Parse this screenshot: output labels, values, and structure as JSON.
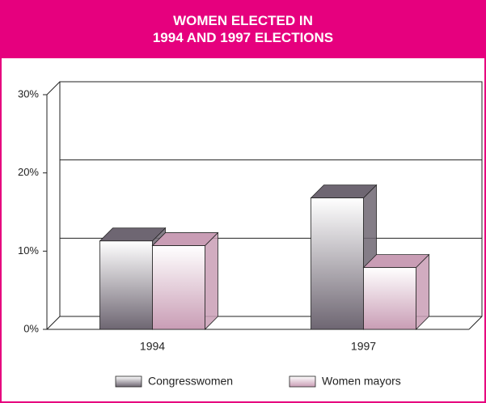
{
  "chart_data": {
    "type": "bar3d",
    "title": "WOMEN ELECTED IN\n1994 AND 1997 ELECTIONS",
    "categories": [
      "1994",
      "1997"
    ],
    "series": [
      {
        "name": "Congresswomen",
        "color": "#6e6672",
        "values": [
          11.3,
          16.8
        ]
      },
      {
        "name": "Women mayors",
        "color": "#c99db5",
        "values": [
          10.7,
          7.9
        ]
      }
    ],
    "ylim": [
      0,
      30
    ],
    "yticks": [
      {
        "value": 0,
        "label": "0%"
      },
      {
        "value": 10,
        "label": "10%"
      },
      {
        "value": 20,
        "label": "20%"
      },
      {
        "value": 30,
        "label": "30%"
      }
    ],
    "grid": true,
    "legend": "bottom"
  }
}
